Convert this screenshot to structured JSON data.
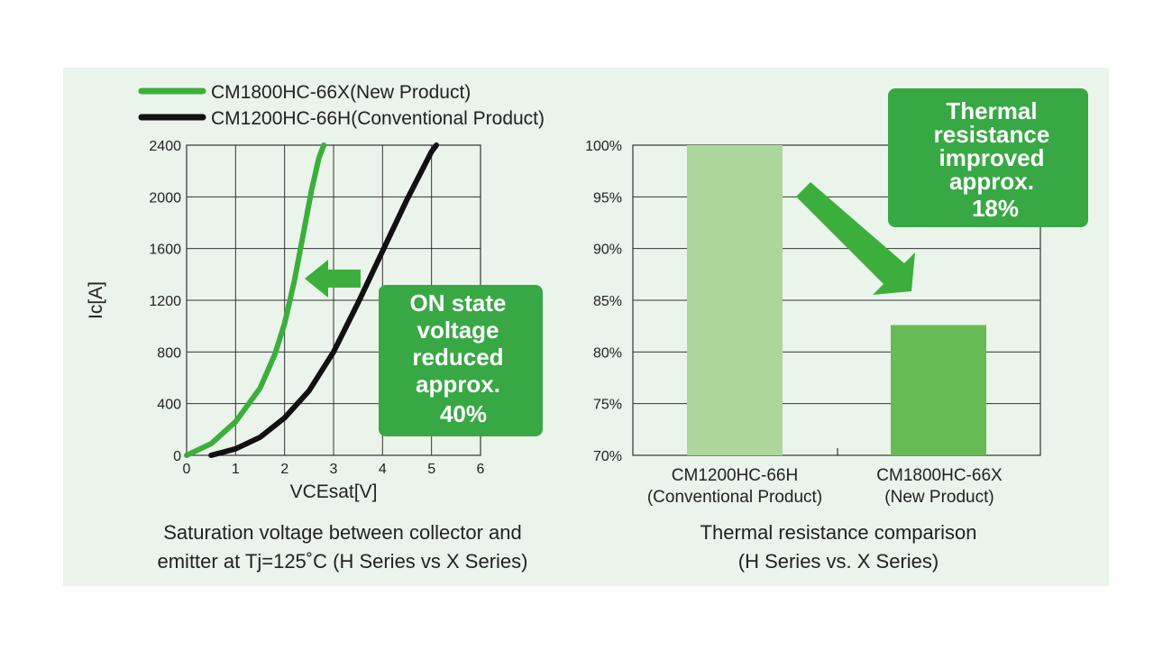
{
  "colors": {
    "panel_bg": "#eaf4ea",
    "green": "#3cae3c",
    "black": "#111111",
    "bar_conventional": "#acd79a",
    "bar_new": "#66bb55",
    "callout_bg": "#38a845",
    "grid": "#333333"
  },
  "legend": [
    {
      "label": "CM1800HC-66X(New Product)",
      "color": "#3cae3c"
    },
    {
      "label": "CM1200HC-66H(Conventional Product)",
      "color": "#111111"
    }
  ],
  "callout_left": [
    "ON state",
    "voltage",
    "reduced",
    "approx.",
    "40%"
  ],
  "callout_right": [
    "Thermal",
    "resistance",
    "improved",
    "approx.",
    "18%"
  ],
  "caption_left": [
    "Saturation voltage between collector and",
    "emitter at Tj=125˚C (H Series vs X Series)"
  ],
  "caption_right": [
    "Thermal resistance comparison",
    "(H Series vs. X Series)"
  ],
  "chart_data": [
    {
      "type": "line",
      "xlabel": "VCEsat[V]",
      "ylabel": "Ic[A]",
      "xlim": [
        0,
        6
      ],
      "ylim": [
        0,
        2400
      ],
      "x_ticks": [
        "0",
        "1",
        "2",
        "3",
        "4",
        "5",
        "6"
      ],
      "y_ticks": [
        "0",
        "400",
        "800",
        "1200",
        "1600",
        "2000",
        "2400"
      ],
      "grid": true,
      "legend_position": "top-left",
      "series": [
        {
          "name": "CM1800HC-66X(New Product)",
          "color": "#3cae3c",
          "x": [
            0,
            0.5,
            1.0,
            1.5,
            1.8,
            2.0,
            2.2,
            2.4,
            2.55,
            2.7,
            2.8
          ],
          "y": [
            0,
            90,
            260,
            520,
            780,
            1020,
            1350,
            1750,
            2050,
            2300,
            2400
          ]
        },
        {
          "name": "CM1200HC-66H(Conventional Product)",
          "color": "#111111",
          "x": [
            0.5,
            1.0,
            1.5,
            2.0,
            2.5,
            3.0,
            3.5,
            4.0,
            4.5,
            5.0,
            5.1
          ],
          "y": [
            0,
            50,
            140,
            290,
            500,
            800,
            1180,
            1580,
            1980,
            2350,
            2400
          ]
        }
      ]
    },
    {
      "type": "bar",
      "categories": [
        "CM1200HC-66H\n(Conventional Product)",
        "CM1800HC-66X\n(New Product)"
      ],
      "category_lines": [
        [
          "CM1200HC-66H",
          "(Conventional Product)"
        ],
        [
          "CM1800HC-66X",
          "(New Product)"
        ]
      ],
      "values": [
        100,
        82.6
      ],
      "ylim": [
        70,
        100
      ],
      "y_ticks": [
        "70%",
        "75%",
        "80%",
        "85%",
        "90%",
        "95%",
        "100%"
      ],
      "y_tick_values": [
        70,
        75,
        80,
        85,
        90,
        95,
        100
      ],
      "grid": true
    }
  ]
}
